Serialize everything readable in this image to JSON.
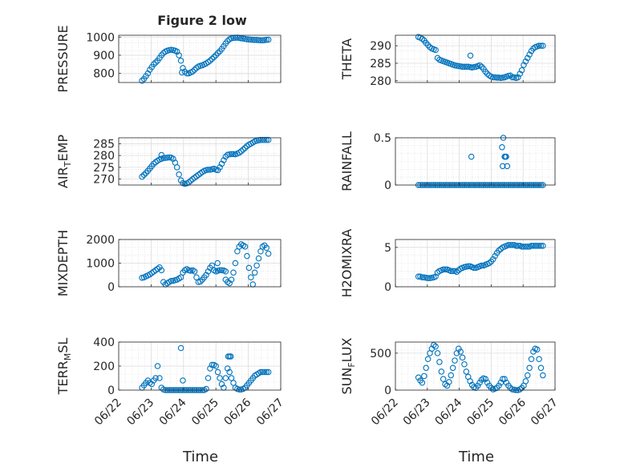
{
  "figure": {
    "title": "Figure 2 low",
    "marker_color": "#0072BD",
    "x_tick_labels": [
      "06/22",
      "06/23",
      "06/24",
      "06/25",
      "06/26",
      "06/27"
    ],
    "x_label": "Time"
  },
  "chart_data": [
    {
      "type": "scatter",
      "ylabel": "PRESSURE",
      "ylim": [
        750,
        1010
      ],
      "yticks": [
        800,
        900,
        1000
      ],
      "grid": true,
      "x": [
        0.72,
        0.78,
        0.84,
        0.9,
        0.96,
        1.02,
        1.08,
        1.14,
        1.2,
        1.26,
        1.32,
        1.38,
        1.44,
        1.5,
        1.56,
        1.62,
        1.68,
        1.74,
        1.8,
        1.86,
        1.92,
        1.98,
        2.04,
        2.1,
        2.16,
        2.22,
        2.28,
        2.34,
        2.4,
        2.46,
        2.52,
        2.58,
        2.64,
        2.7,
        2.76,
        2.82,
        2.88,
        2.94,
        3.0,
        3.06,
        3.12,
        3.18,
        3.24,
        3.3,
        3.36,
        3.42,
        3.48,
        3.54,
        3.6,
        3.66,
        3.72,
        3.78,
        3.84,
        3.9,
        3.96,
        4.02,
        4.08,
        4.14,
        4.2,
        4.26,
        4.32,
        4.38,
        4.44,
        4.5,
        4.56,
        4.62
      ],
      "y": [
        760,
        770,
        785,
        800,
        820,
        835,
        850,
        860,
        870,
        885,
        900,
        912,
        920,
        925,
        928,
        930,
        928,
        925,
        920,
        900,
        870,
        830,
        810,
        800,
        800,
        805,
        810,
        820,
        830,
        838,
        842,
        845,
        850,
        855,
        862,
        870,
        880,
        890,
        900,
        912,
        922,
        935,
        950,
        965,
        978,
        988,
        993,
        995,
        996,
        997,
        995,
        993,
        992,
        990,
        988,
        987,
        986,
        985,
        984,
        984,
        983,
        982,
        982,
        983,
        985,
        986
      ],
      "outliers": [
        {
          "x": 1.95,
          "y": 805
        }
      ]
    },
    {
      "type": "scatter",
      "ylabel": "THETA",
      "ylim": [
        279.5,
        293
      ],
      "yticks": [
        280,
        285,
        290
      ],
      "grid": true,
      "x": [
        0.72,
        0.78,
        0.84,
        0.9,
        0.96,
        1.02,
        1.08,
        1.14,
        1.2,
        1.26,
        1.32,
        1.38,
        1.44,
        1.5,
        1.56,
        1.62,
        1.68,
        1.74,
        1.8,
        1.86,
        1.92,
        1.98,
        2.04,
        2.1,
        2.16,
        2.22,
        2.28,
        2.34,
        2.4,
        2.46,
        2.52,
        2.58,
        2.64,
        2.7,
        2.76,
        2.82,
        2.88,
        2.94,
        3.0,
        3.06,
        3.12,
        3.18,
        3.24,
        3.3,
        3.36,
        3.42,
        3.48,
        3.54,
        3.6,
        3.66,
        3.72,
        3.78,
        3.84,
        3.9,
        3.96,
        4.02,
        4.08,
        4.14,
        4.2,
        4.26,
        4.32,
        4.38,
        4.44,
        4.5,
        4.56,
        4.62
      ],
      "y": [
        292.5,
        292.3,
        292,
        291.5,
        290.8,
        290.2,
        289.6,
        289.2,
        289,
        288.8,
        286.5,
        286,
        285.8,
        285.6,
        285.4,
        285.2,
        285,
        284.8,
        284.6,
        284.4,
        284.3,
        284.2,
        284.1,
        284,
        284,
        284,
        284,
        283.9,
        283.8,
        283.9,
        284,
        284.2,
        284.4,
        284,
        283.4,
        282.6,
        282,
        281.5,
        281.2,
        281,
        281,
        280.9,
        280.9,
        280.8,
        280.9,
        281,
        281.2,
        281.4,
        281.5,
        281,
        281,
        280.8,
        281,
        282,
        283,
        284.5,
        285.5,
        286.5,
        287.5,
        288.5,
        289.2,
        289.6,
        289.8,
        290,
        290,
        290
      ],
      "outliers": [
        {
          "x": 2.35,
          "y": 287.2
        }
      ]
    },
    {
      "type": "scatter",
      "ylabel": "AIR_TEMP",
      "ylim": [
        267.5,
        287.5
      ],
      "yticks": [
        270,
        275,
        280,
        285
      ],
      "grid": true,
      "x": [
        0.72,
        0.78,
        0.84,
        0.9,
        0.96,
        1.02,
        1.08,
        1.14,
        1.2,
        1.26,
        1.32,
        1.38,
        1.44,
        1.5,
        1.56,
        1.62,
        1.68,
        1.74,
        1.8,
        1.86,
        1.92,
        1.98,
        2.04,
        2.1,
        2.16,
        2.22,
        2.28,
        2.34,
        2.4,
        2.46,
        2.52,
        2.58,
        2.64,
        2.7,
        2.76,
        2.82,
        2.88,
        2.94,
        3.0,
        3.06,
        3.12,
        3.18,
        3.24,
        3.3,
        3.36,
        3.42,
        3.48,
        3.54,
        3.6,
        3.66,
        3.72,
        3.78,
        3.84,
        3.9,
        3.96,
        4.02,
        4.08,
        4.14,
        4.2,
        4.26,
        4.32,
        4.38,
        4.44,
        4.5,
        4.56,
        4.62
      ],
      "y": [
        271,
        271.8,
        272.6,
        273.5,
        274.5,
        275.5,
        276.5,
        277.2,
        277.8,
        278.3,
        278.6,
        278.9,
        279,
        279.1,
        279.2,
        279.1,
        278.6,
        277,
        275,
        272,
        269.5,
        268.3,
        268,
        268.2,
        268.6,
        269.3,
        270,
        270.6,
        271.2,
        271.8,
        272.4,
        273,
        273.5,
        273.8,
        274,
        274,
        274.2,
        274.4,
        274,
        273.8,
        275,
        276.5,
        278,
        279.5,
        280.3,
        280.5,
        280.6,
        280.6,
        280.5,
        280.8,
        281.2,
        281.8,
        282.5,
        283.2,
        284,
        284.6,
        285,
        285.5,
        286,
        286.3,
        286.5,
        286.6,
        286.6,
        286.6,
        286.6,
        286.6
      ],
      "outliers": [
        {
          "x": 1.32,
          "y": 280.2
        }
      ]
    },
    {
      "type": "scatter",
      "ylabel": "RAINFALL",
      "ylim": [
        0,
        0.5
      ],
      "yticks": [
        0,
        0.5
      ],
      "grid": true,
      "x": [
        0.72,
        0.78,
        0.84,
        0.9,
        0.96,
        1.02,
        1.08,
        1.14,
        1.2,
        1.26,
        1.32,
        1.38,
        1.44,
        1.5,
        1.56,
        1.62,
        1.68,
        1.74,
        1.8,
        1.86,
        1.92,
        1.98,
        2.04,
        2.1,
        2.16,
        2.22,
        2.28,
        2.34,
        2.4,
        2.46,
        2.52,
        2.58,
        2.64,
        2.7,
        2.76,
        2.82,
        2.88,
        2.94,
        3.0,
        3.06,
        3.12,
        3.18,
        3.24,
        3.3,
        3.36,
        3.42,
        3.48,
        3.54,
        3.6,
        3.66,
        3.72,
        3.78,
        3.84,
        3.9,
        3.96,
        4.02,
        4.08,
        4.14,
        4.2,
        4.26,
        4.32,
        4.38,
        4.44,
        4.5,
        4.56,
        4.62
      ],
      "y": [
        0,
        0,
        0,
        0,
        0,
        0,
        0,
        0,
        0,
        0,
        0,
        0,
        0,
        0,
        0,
        0,
        0,
        0,
        0,
        0,
        0,
        0,
        0,
        0,
        0,
        0,
        0,
        0,
        0,
        0,
        0,
        0,
        0,
        0,
        0,
        0,
        0,
        0,
        0,
        0,
        0,
        0,
        0,
        0,
        0,
        0,
        0,
        0,
        0,
        0,
        0,
        0,
        0,
        0,
        0,
        0,
        0,
        0,
        0,
        0,
        0,
        0,
        0,
        0,
        0,
        0
      ],
      "outliers": [
        {
          "x": 2.38,
          "y": 0.3
        },
        {
          "x": 3.38,
          "y": 0.5
        },
        {
          "x": 3.34,
          "y": 0.4
        },
        {
          "x": 3.36,
          "y": 0.2
        },
        {
          "x": 3.42,
          "y": 0.3
        },
        {
          "x": 3.44,
          "y": 0.3
        },
        {
          "x": 3.47,
          "y": 0.3
        },
        {
          "x": 3.5,
          "y": 0.2
        }
      ]
    },
    {
      "type": "scatter",
      "ylabel": "MIXDEPTH",
      "ylim": [
        0,
        2000
      ],
      "yticks": [
        0,
        1000,
        2000
      ],
      "grid": true,
      "x": [
        0.72,
        0.78,
        0.84,
        0.9,
        0.96,
        1.02,
        1.08,
        1.14,
        1.2,
        1.26,
        1.32,
        1.38,
        1.44,
        1.5,
        1.56,
        1.62,
        1.68,
        1.74,
        1.8,
        1.86,
        1.92,
        1.98,
        2.04,
        2.1,
        2.16,
        2.22,
        2.28,
        2.34,
        2.4,
        2.46,
        2.52,
        2.58,
        2.64,
        2.7,
        2.76,
        2.82,
        2.88,
        2.94,
        3.0,
        3.06,
        3.12,
        3.18,
        3.24,
        3.3,
        3.36,
        3.42,
        3.48,
        3.54,
        3.6,
        3.66,
        3.72,
        3.78,
        3.84,
        3.9,
        3.96,
        4.02,
        4.08,
        4.14,
        4.2,
        4.26,
        4.32,
        4.38,
        4.44,
        4.5,
        4.56,
        4.62
      ],
      "y": [
        380,
        400,
        440,
        480,
        520,
        580,
        640,
        700,
        760,
        820,
        700,
        200,
        100,
        150,
        200,
        250,
        250,
        280,
        300,
        350,
        400,
        600,
        700,
        750,
        700,
        680,
        700,
        650,
        400,
        200,
        220,
        300,
        400,
        500,
        650,
        800,
        900,
        700,
        650,
        680,
        700,
        700,
        690,
        650,
        200,
        150,
        300,
        600,
        1000,
        1500,
        1700,
        1800,
        1750,
        1700,
        1300,
        800,
        400,
        100,
        600,
        900,
        1200,
        1500,
        1700,
        1750,
        1650,
        1400
      ],
      "outliers": [
        {
          "x": 3.3,
          "y": 300
        },
        {
          "x": 3.05,
          "y": 1000
        }
      ]
    },
    {
      "type": "scatter",
      "ylabel": "H2OMIXRA",
      "ylim": [
        0,
        6
      ],
      "yticks": [
        0,
        5
      ],
      "grid": true,
      "x": [
        0.72,
        0.78,
        0.84,
        0.9,
        0.96,
        1.02,
        1.08,
        1.14,
        1.2,
        1.26,
        1.32,
        1.38,
        1.44,
        1.5,
        1.56,
        1.62,
        1.68,
        1.74,
        1.8,
        1.86,
        1.92,
        1.98,
        2.04,
        2.1,
        2.16,
        2.22,
        2.28,
        2.34,
        2.4,
        2.46,
        2.52,
        2.58,
        2.64,
        2.7,
        2.76,
        2.82,
        2.88,
        2.94,
        3.0,
        3.06,
        3.12,
        3.18,
        3.24,
        3.3,
        3.36,
        3.42,
        3.48,
        3.54,
        3.6,
        3.66,
        3.72,
        3.78,
        3.84,
        3.9,
        3.96,
        4.02,
        4.08,
        4.14,
        4.2,
        4.26,
        4.32,
        4.38,
        4.44,
        4.5,
        4.56,
        4.62
      ],
      "y": [
        1.3,
        1.3,
        1.2,
        1.2,
        1.15,
        1.1,
        1.1,
        1.15,
        1.2,
        1.3,
        1.8,
        2,
        2.1,
        2.2,
        2.2,
        2.2,
        2.1,
        2,
        2,
        2,
        1.9,
        2.1,
        2.3,
        2.4,
        2.5,
        2.55,
        2.6,
        2.6,
        2.5,
        2.4,
        2.4,
        2.5,
        2.6,
        2.7,
        2.7,
        2.8,
        2.9,
        3,
        3.2,
        3.5,
        3.9,
        4.3,
        4.6,
        4.8,
        5,
        5.1,
        5.2,
        5.3,
        5.3,
        5.3,
        5.3,
        5.2,
        5.2,
        5.2,
        5.1,
        5.1,
        5.1,
        5.1,
        5.1,
        5.2,
        5.2,
        5.2,
        5.2,
        5.2,
        5.2,
        5.2
      ],
      "outliers": []
    },
    {
      "type": "scatter",
      "ylabel": "TERR_MSL",
      "ylim": [
        0,
        400
      ],
      "yticks": [
        0,
        200,
        400
      ],
      "grid": true,
      "x": [
        0.72,
        0.78,
        0.84,
        0.9,
        0.96,
        1.02,
        1.08,
        1.14,
        1.2,
        1.26,
        1.32,
        1.38,
        1.44,
        1.5,
        1.56,
        1.62,
        1.68,
        1.74,
        1.8,
        1.86,
        1.92,
        1.98,
        2.04,
        2.1,
        2.16,
        2.22,
        2.28,
        2.34,
        2.4,
        2.46,
        2.52,
        2.58,
        2.64,
        2.7,
        2.76,
        2.82,
        2.88,
        2.94,
        3.0,
        3.06,
        3.12,
        3.18,
        3.24,
        3.3,
        3.36,
        3.42,
        3.48,
        3.54,
        3.6,
        3.66,
        3.72,
        3.78,
        3.84,
        3.9,
        3.96,
        4.02,
        4.08,
        4.14,
        4.2,
        4.26,
        4.32,
        4.38,
        4.44,
        4.5,
        4.56,
        4.62
      ],
      "y": [
        20,
        40,
        60,
        80,
        60,
        50,
        80,
        100,
        200,
        100,
        20,
        5,
        0,
        0,
        0,
        0,
        0,
        0,
        0,
        0,
        0,
        0,
        0,
        0,
        0,
        0,
        0,
        0,
        0,
        0,
        0,
        0,
        0,
        10,
        100,
        180,
        210,
        210,
        200,
        150,
        100,
        50,
        20,
        100,
        180,
        150,
        100,
        60,
        20,
        10,
        5,
        5,
        10,
        20,
        40,
        60,
        80,
        100,
        120,
        130,
        140,
        150,
        150,
        150,
        150,
        150
      ],
      "outliers": [
        {
          "x": 1.92,
          "y": 350
        },
        {
          "x": 1.98,
          "y": 80
        },
        {
          "x": 3.38,
          "y": 280
        },
        {
          "x": 3.42,
          "y": 280
        },
        {
          "x": 3.46,
          "y": 280
        }
      ]
    },
    {
      "type": "scatter",
      "ylabel": "SUN_FLUX",
      "ylim": [
        0,
        650
      ],
      "yticks": [
        0,
        500
      ],
      "grid": true,
      "x": [
        0.72,
        0.78,
        0.84,
        0.9,
        0.96,
        1.02,
        1.08,
        1.14,
        1.2,
        1.26,
        1.32,
        1.38,
        1.44,
        1.5,
        1.56,
        1.62,
        1.68,
        1.74,
        1.8,
        1.86,
        1.92,
        1.98,
        2.04,
        2.1,
        2.16,
        2.22,
        2.28,
        2.34,
        2.4,
        2.46,
        2.52,
        2.58,
        2.64,
        2.7,
        2.76,
        2.82,
        2.88,
        2.94,
        3.0,
        3.06,
        3.12,
        3.18,
        3.24,
        3.3,
        3.36,
        3.42,
        3.48,
        3.54,
        3.6,
        3.66,
        3.72,
        3.78,
        3.84,
        3.9,
        3.96,
        4.02,
        4.08,
        4.14,
        4.2,
        4.26,
        4.32,
        4.38,
        4.44,
        4.5,
        4.56,
        4.62
      ],
      "y": [
        170,
        130,
        100,
        190,
        300,
        420,
        500,
        560,
        610,
        590,
        500,
        380,
        250,
        150,
        80,
        60,
        110,
        200,
        300,
        400,
        500,
        560,
        520,
        440,
        350,
        250,
        180,
        120,
        70,
        40,
        30,
        60,
        100,
        140,
        160,
        150,
        100,
        60,
        30,
        10,
        20,
        30,
        60,
        100,
        150,
        150,
        100,
        60,
        30,
        10,
        5,
        0,
        0,
        10,
        30,
        60,
        120,
        200,
        300,
        420,
        520,
        560,
        550,
        420,
        300,
        200
      ],
      "outliers": []
    }
  ]
}
